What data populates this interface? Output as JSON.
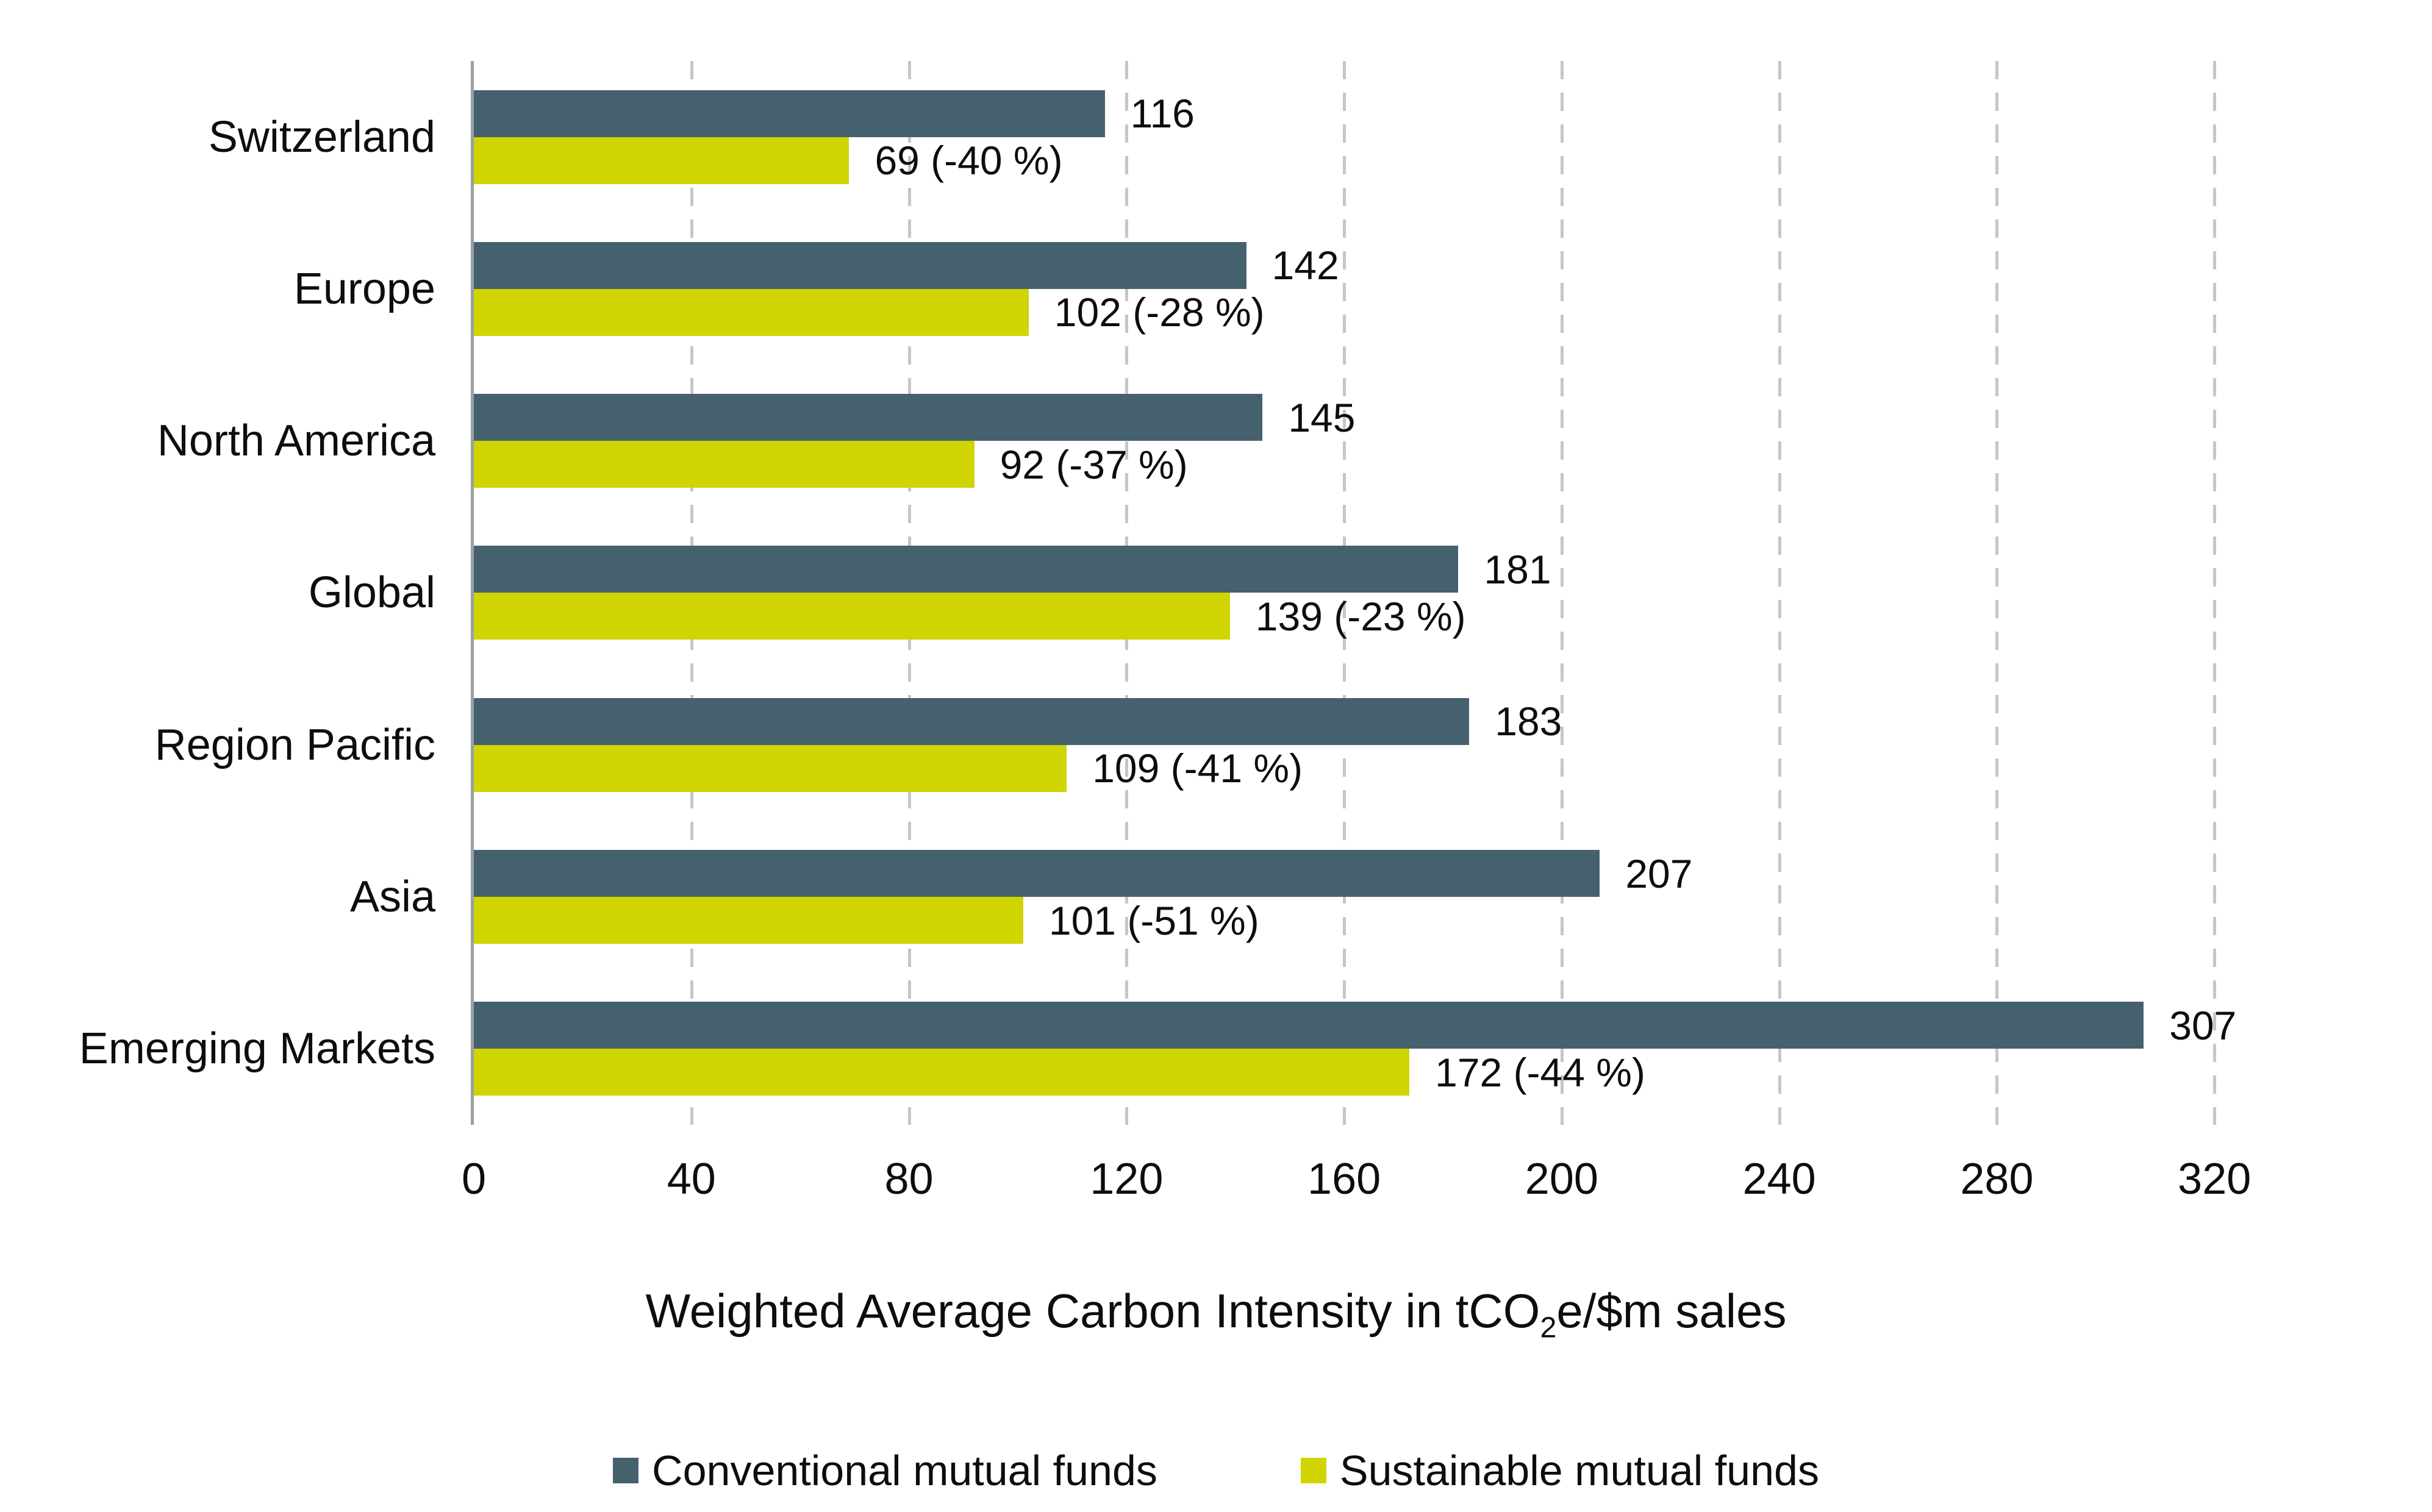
{
  "chart_data": {
    "type": "bar",
    "orientation": "horizontal",
    "title": "",
    "categories": [
      "Switzerland",
      "Europe",
      "North America",
      "Global",
      "Region Pacific",
      "Asia",
      "Emerging Markets"
    ],
    "series": [
      {
        "name": "Conventional mutual funds",
        "color": "#45616e",
        "values": [
          116,
          142,
          145,
          181,
          183,
          207,
          307
        ],
        "labels": [
          "116",
          "142",
          "145",
          "181",
          "183",
          "207",
          "307"
        ]
      },
      {
        "name": "Sustainable mutual funds",
        "color": "#d0d400",
        "values": [
          69,
          102,
          92,
          139,
          109,
          101,
          172
        ],
        "labels": [
          "69 (-40 %)",
          "102 (-28 %)",
          "92 (-37 %)",
          "139 (-23 %)",
          "109 (-41 %)",
          "101 (-51 %)",
          "172 (-44 %)"
        ]
      }
    ],
    "xlabel": "Weighted Average Carbon Intensity in tCO2e/$m sales",
    "xlabel_parts": {
      "pre": "Weighted Average Carbon Intensity in tCO",
      "sub": "2",
      "post": "e/$m sales"
    },
    "x_ticks": [
      0,
      40,
      80,
      120,
      160,
      200,
      240,
      280,
      320
    ],
    "xlim": [
      0,
      360
    ],
    "grid": "vertical-dashed",
    "legend_position": "bottom"
  },
  "colors": {
    "background": "#ffffff",
    "axis_line": "#9aa0a2",
    "gridline": "#c4c6c7",
    "text": "#0d0d0d",
    "conventional": "#45616e",
    "sustainable": "#d0d400"
  }
}
